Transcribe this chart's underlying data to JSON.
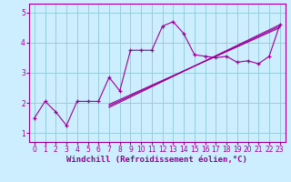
{
  "xlabel": "Windchill (Refroidissement éolien,°C)",
  "bg_color": "#cceeff",
  "line_color": "#990099",
  "grid_color": "#99ccdd",
  "xlim": [
    -0.5,
    23.5
  ],
  "ylim": [
    0.7,
    5.3
  ],
  "xticks": [
    0,
    1,
    2,
    3,
    4,
    5,
    6,
    7,
    8,
    9,
    10,
    11,
    12,
    13,
    14,
    15,
    16,
    17,
    18,
    19,
    20,
    21,
    22,
    23
  ],
  "yticks": [
    1,
    2,
    3,
    4,
    5
  ],
  "series1_x": [
    0,
    1,
    2,
    3,
    4,
    5,
    6,
    7,
    8,
    9,
    10,
    11,
    12,
    13,
    14,
    15,
    16,
    17,
    18,
    19,
    20,
    21,
    22,
    23
  ],
  "series1_y": [
    1.5,
    2.05,
    1.7,
    1.25,
    2.05,
    2.05,
    2.05,
    2.85,
    2.4,
    3.75,
    3.75,
    3.75,
    4.55,
    4.7,
    4.3,
    3.6,
    3.55,
    3.5,
    3.55,
    3.35,
    3.4,
    3.3,
    3.55,
    4.6
  ],
  "line2_x": [
    7,
    23
  ],
  "line2_y": [
    1.85,
    4.6
  ],
  "line3_x": [
    7,
    23
  ],
  "line3_y": [
    1.9,
    4.55
  ],
  "line4_x": [
    7,
    23
  ],
  "line4_y": [
    1.95,
    4.5
  ],
  "xlabel_fontsize": 6.5,
  "tick_fontsize": 5.5
}
